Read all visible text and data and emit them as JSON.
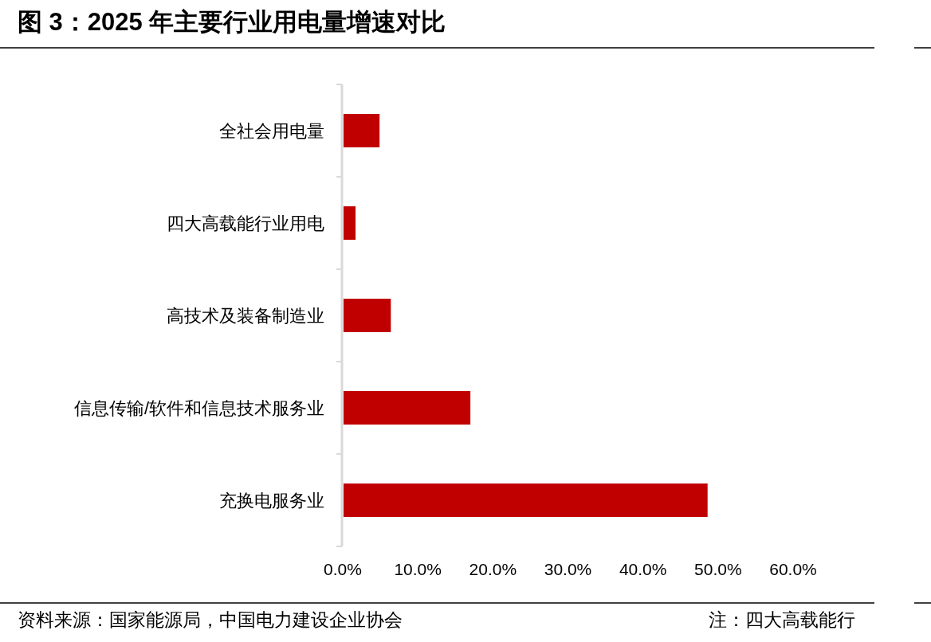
{
  "chart_data": {
    "type": "bar",
    "orientation": "horizontal",
    "title": "图 3：2025 年主要行业用电量增速对比",
    "categories": [
      "全社会用电量",
      "四大高载能行业用电",
      "高技术及装备制造业",
      "信息传输/软件和信息技术服务业",
      "充换电服务业"
    ],
    "values": [
      4.8,
      1.6,
      6.3,
      16.9,
      48.5
    ],
    "color": "#c00000",
    "xlim": [
      0,
      60
    ],
    "xticks": [
      {
        "value": 0,
        "label": "0.0%"
      },
      {
        "value": 10,
        "label": "10.0%"
      },
      {
        "value": 20,
        "label": "20.0%"
      },
      {
        "value": 30,
        "label": "30.0%"
      },
      {
        "value": 40,
        "label": "40.0%"
      },
      {
        "value": 50,
        "label": "50.0%"
      },
      {
        "value": 60,
        "label": "60.0%"
      }
    ],
    "grid": false,
    "annotations": [
      "资料来源：国家能源局，中国电力建设企业协会",
      "注：四大高载能行"
    ]
  }
}
